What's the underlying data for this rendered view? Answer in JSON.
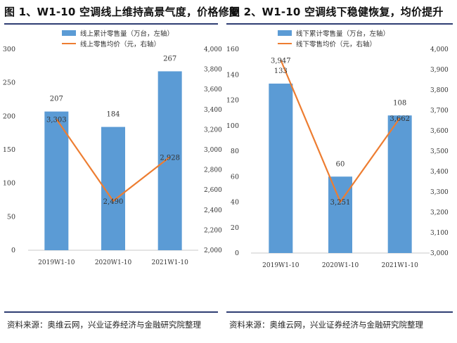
{
  "footer": {
    "source_left": "资料来源：奥维云网，兴业证券经济与金融研究院整理",
    "source_right": "资料来源：奥维云网，兴业证券经济与金融研究院整理"
  },
  "colors": {
    "bar": "#5b9bd5",
    "line": "#ed7d31",
    "rule": "#2f3e73"
  },
  "chart_data": [
    {
      "type": "bar",
      "title": "图 1、W1-10 空调线上维持高景气度，价格修复",
      "categories": [
        "2019W1-10",
        "2020W1-10",
        "2021W1-10"
      ],
      "series": [
        {
          "name": "线上累计零售量（万台，左轴）",
          "type": "bar",
          "axis": "left",
          "values": [
            207,
            184,
            267
          ],
          "labels": [
            "207",
            "184",
            "267"
          ]
        },
        {
          "name": "线上零售均价（元，右轴）",
          "type": "line",
          "axis": "right",
          "values": [
            3303,
            2490,
            2928
          ],
          "labels": [
            "3,303",
            "2,490",
            "2,928"
          ]
        }
      ],
      "ylim_left": [
        0,
        300
      ],
      "yticks_left": [
        "0",
        "50",
        "100",
        "150",
        "200",
        "250",
        "300"
      ],
      "ylim_right": [
        2000,
        4000
      ],
      "yticks_right": [
        "2,000",
        "2,200",
        "2,400",
        "2,600",
        "2,800",
        "3,000",
        "3,200",
        "3,400",
        "3,600",
        "3,800",
        "4,000"
      ],
      "legend_position": "top",
      "grid": false
    },
    {
      "type": "bar",
      "title": "图 2、W1-10 空调线下稳健恢复，均价提升",
      "categories": [
        "2019W1-10",
        "2020W1-10",
        "2021W1-10"
      ],
      "series": [
        {
          "name": "线下累计零售量（万台，左轴）",
          "type": "bar",
          "axis": "left",
          "values": [
            133,
            60,
            108
          ],
          "labels": [
            "133",
            "60",
            "108"
          ]
        },
        {
          "name": "线下零售均价（元，右轴）",
          "type": "line",
          "axis": "right",
          "values": [
            3947,
            3251,
            3662
          ],
          "labels": [
            "3,947",
            "3,251",
            "3,662"
          ]
        }
      ],
      "ylim_left": [
        0,
        160
      ],
      "yticks_left": [
        "0",
        "20",
        "40",
        "60",
        "80",
        "100",
        "120",
        "140",
        "160"
      ],
      "ylim_right": [
        3000,
        4000
      ],
      "yticks_right": [
        "3,000",
        "3,100",
        "3,200",
        "3,300",
        "3,400",
        "3,500",
        "3,600",
        "3,700",
        "3,800",
        "3,900",
        "4,000"
      ],
      "legend_position": "top",
      "grid": false
    }
  ]
}
